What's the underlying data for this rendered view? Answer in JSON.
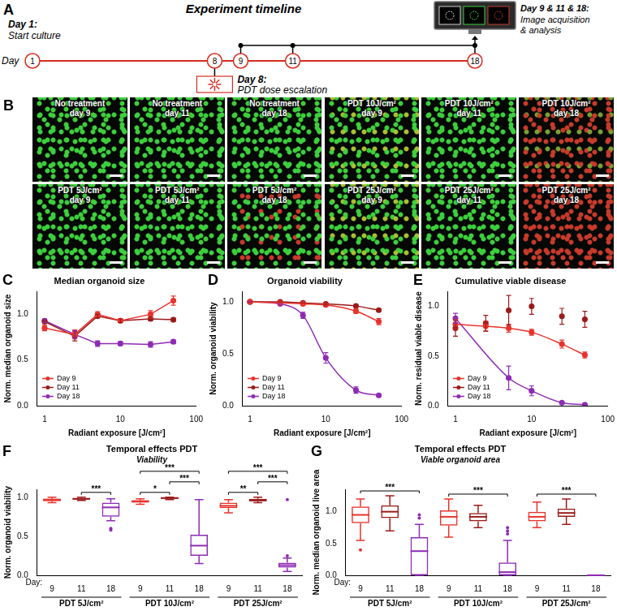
{
  "timeline": {
    "panel_label": "A",
    "title": "Experiment timeline",
    "axis_label": "Day",
    "days": [
      1,
      8,
      9,
      11,
      18
    ],
    "start": {
      "day": 1,
      "title": "Day 1:",
      "lines": [
        "Start culture"
      ]
    },
    "treatment": {
      "day": 8,
      "title": "Day 8:",
      "lines": [
        "PDT dose escalation"
      ]
    },
    "imaging": {
      "days": [
        9,
        11,
        18
      ],
      "title": "Day 9 & 11 & 18:",
      "lines": [
        "Image acquisition",
        "& analysis"
      ]
    }
  },
  "images": {
    "panel_label": "B",
    "tiles": [
      {
        "title": "No treatment",
        "day": "day 9",
        "colors": [
          "#3ccf3c"
        ]
      },
      {
        "title": "No treatment",
        "day": "day 11",
        "colors": [
          "#3ccf3c"
        ]
      },
      {
        "title": "No treatment",
        "day": "day 18",
        "colors": [
          "#3ccf3c"
        ]
      },
      {
        "title": "PDT 10J/cm²",
        "day": "day 9",
        "colors": [
          "#3ccf3c",
          "#3ccf3c",
          "#a8c030"
        ]
      },
      {
        "title": "PDT 10J/cm²",
        "day": "day 11",
        "colors": [
          "#3ccf3c"
        ]
      },
      {
        "title": "PDT 10J/cm²",
        "day": "day 18",
        "colors": [
          "#c83a2a",
          "#c83a2a",
          "#7aa030"
        ]
      },
      {
        "title": "PDT 5J/cm²",
        "day": "day 9",
        "colors": [
          "#3ccf3c"
        ]
      },
      {
        "title": "PDT 5J/cm²",
        "day": "day 11",
        "colors": [
          "#3ccf3c"
        ]
      },
      {
        "title": "PDT 5J/cm²",
        "day": "day 18",
        "colors": [
          "#3ccf3c",
          "#c83a2a"
        ]
      },
      {
        "title": "PDT 25J/cm²",
        "day": "day 9",
        "colors": [
          "#3ccf3c",
          "#3ccf3c",
          "#a8c030"
        ]
      },
      {
        "title": "PDT 25J/cm²",
        "day": "day 11",
        "colors": [
          "#3ccf3c"
        ]
      },
      {
        "title": "PDT 25J/cm²",
        "day": "day 18",
        "colors": [
          "#c83a2a"
        ]
      }
    ]
  },
  "chart_data": [
    {
      "panel_label": "C",
      "type": "line",
      "title": "Median organoid size",
      "x_label": "Radiant exposure [J/cm²]",
      "y_label": "Norm. median organoid size",
      "log": "x",
      "grid": false,
      "legend": "bottom left",
      "x": [
        1,
        2.5,
        5,
        10,
        25,
        50
      ],
      "xlim": [
        0.8,
        100
      ],
      "xticks": [
        1,
        10,
        100
      ],
      "ylim": [
        0,
        1.25
      ],
      "yticks": [
        {
          "value": 0,
          "label": "0.0"
        },
        {
          "value": 0.5,
          "label": "0.5"
        },
        {
          "value": 1,
          "label": "1.0"
        }
      ],
      "series": [
        {
          "name": "Day 9",
          "color": "#e8332c",
          "marker": "circle",
          "line_style": "solid",
          "values": [
            0.85,
            0.78,
            1.0,
            0.93,
            1.0,
            1.15
          ],
          "errors": [
            0.03,
            0.05,
            0.03,
            0.02,
            0.04,
            0.05
          ]
        },
        {
          "name": "Day 11",
          "color": "#9b1b1b",
          "marker": "circle",
          "line_style": "solid",
          "values": [
            0.92,
            0.76,
            0.98,
            0.93,
            0.95,
            0.94
          ],
          "errors": [
            0.02,
            0.05,
            0.02,
            0.02,
            0.02,
            0.02
          ]
        },
        {
          "name": "Day 18",
          "color": "#8e2bb5",
          "marker": "circle",
          "line_style": "solid",
          "values": [
            0.93,
            0.78,
            0.68,
            0.68,
            0.67,
            0.7
          ],
          "errors": [
            0.02,
            0.04,
            0.03,
            0.02,
            0.03,
            0.02
          ]
        }
      ]
    },
    {
      "panel_label": "D",
      "type": "line",
      "title": "Organoid viability",
      "x_label": "Radiant exposure [J/cm²]",
      "y_label": "Norm. organoid viability",
      "log": "x",
      "grid": false,
      "legend": "bottom left",
      "x": [
        1,
        2.5,
        5,
        10,
        25,
        50
      ],
      "xlim": [
        0.8,
        100
      ],
      "xticks": [
        1,
        10,
        100
      ],
      "ylim": [
        0,
        1.1
      ],
      "yticks": [
        {
          "value": 0,
          "label": "0.0"
        },
        {
          "value": 0.5,
          "label": "0.5"
        },
        {
          "value": 1,
          "label": "1.0"
        }
      ],
      "series": [
        {
          "name": "Day 9",
          "color": "#e8332c",
          "marker": "circle",
          "line_style": "curve",
          "values": [
            1.0,
            0.99,
            0.98,
            0.97,
            0.91,
            0.81
          ],
          "errors": [
            0,
            0,
            0.01,
            0.01,
            0.02,
            0.03
          ]
        },
        {
          "name": "Day 11",
          "color": "#9b1b1b",
          "marker": "circle",
          "line_style": "curve",
          "values": [
            1.0,
            1.0,
            0.99,
            0.98,
            0.96,
            0.92
          ],
          "errors": [
            0,
            0,
            0,
            0.01,
            0.01,
            0.01
          ]
        },
        {
          "name": "Day 18",
          "color": "#8e2bb5",
          "marker": "circle",
          "line_style": "curve",
          "values": [
            1.0,
            0.98,
            0.87,
            0.46,
            0.15,
            0.1
          ],
          "errors": [
            0,
            0,
            0.03,
            0.05,
            0.03,
            0.01
          ]
        }
      ]
    },
    {
      "panel_label": "E",
      "type": "line",
      "title": "Cumulative viable disease",
      "x_label": "Radiant exposure [J/cm²]",
      "y_label": "Norm. residual viable disease",
      "log": "x",
      "grid": false,
      "legend": "bottom left",
      "x": [
        1,
        2.5,
        5,
        10,
        25,
        50
      ],
      "xlim": [
        0.8,
        100
      ],
      "xticks": [
        1,
        10,
        100
      ],
      "ylim": [
        0,
        1.15
      ],
      "yticks": [
        {
          "value": 0,
          "label": "0.0"
        },
        {
          "value": 0.5,
          "label": "0.5"
        },
        {
          "value": 1,
          "label": "1.0"
        }
      ],
      "series": [
        {
          "name": "Day 9",
          "color": "#e8332c",
          "marker": "circle",
          "line_style": "curve",
          "values": [
            0.82,
            0.8,
            0.78,
            0.74,
            0.62,
            0.51
          ],
          "errors": [
            0.05,
            0.05,
            0.04,
            0.03,
            0.04,
            0.03
          ]
        },
        {
          "name": "Day 11",
          "color": "#9b1b1b",
          "marker": "circle",
          "line_style": "none",
          "values": [
            0.78,
            0.83,
            0.96,
            1.0,
            0.9,
            0.87
          ],
          "errors": [
            0.08,
            0.08,
            0.15,
            0.08,
            0.08,
            0.08
          ]
        },
        {
          "name": "Day 18",
          "color": "#8e2bb5",
          "marker": "circle",
          "line_style": "curve",
          "values": [
            0.88,
            null,
            0.28,
            0.15,
            0.03,
            0.01
          ],
          "errors": [
            0.05,
            null,
            0.12,
            0.05,
            0.01,
            0.01
          ]
        }
      ]
    },
    {
      "panel_label": "F",
      "type": "box",
      "title": "Temporal effects PDT",
      "subtitle": "Viability",
      "x_label": "Day:",
      "y_label": "Norm. organoid viability",
      "grid": false,
      "categories": [
        "9",
        "11",
        "18",
        "9",
        "11",
        "18",
        "9",
        "11",
        "18"
      ],
      "groups": [
        {
          "label": "PDT 5J/cm²",
          "from": 0,
          "to": 2
        },
        {
          "label": "PDT 10J/cm²",
          "from": 3,
          "to": 5
        },
        {
          "label": "PDT 25J/cm²",
          "from": 6,
          "to": 8
        }
      ],
      "colors": [
        "#e8332c",
        "#9b1b1b",
        "#8e2bb5",
        "#e8332c",
        "#9b1b1b",
        "#8e2bb5",
        "#e8332c",
        "#9b1b1b",
        "#8e2bb5"
      ],
      "ylim": [
        0,
        1.1
      ],
      "yticks": [
        {
          "value": 0,
          "label": "0.0"
        },
        {
          "value": 0.5,
          "label": "0.5"
        },
        {
          "value": 1,
          "label": "1.0"
        }
      ],
      "values": [
        {
          "min": 0.93,
          "q1": 0.95,
          "median": 0.97,
          "q3": 0.98,
          "max": 1.0,
          "outliers": []
        },
        {
          "min": 0.96,
          "q1": 0.97,
          "median": 0.98,
          "q3": 0.99,
          "max": 1.0,
          "outliers": []
        },
        {
          "min": 0.7,
          "q1": 0.75,
          "median": 0.87,
          "q3": 0.93,
          "max": 0.98,
          "outliers": [
            0.6,
            0.58
          ]
        },
        {
          "min": 0.91,
          "q1": 0.93,
          "median": 0.95,
          "q3": 0.96,
          "max": 0.98,
          "outliers": []
        },
        {
          "min": 0.97,
          "q1": 0.98,
          "median": 0.99,
          "q3": 1.0,
          "max": 1.0,
          "outliers": []
        },
        {
          "min": 0.15,
          "q1": 0.25,
          "median": 0.38,
          "q3": 0.52,
          "max": 0.97,
          "outliers": []
        },
        {
          "min": 0.8,
          "q1": 0.86,
          "median": 0.89,
          "q3": 0.93,
          "max": 0.97,
          "outliers": []
        },
        {
          "min": 0.93,
          "q1": 0.95,
          "median": 0.96,
          "q3": 0.98,
          "max": 1.0,
          "outliers": []
        },
        {
          "min": 0.05,
          "q1": 0.1,
          "median": 0.13,
          "q3": 0.16,
          "max": 0.22,
          "outliers": [
            0.25,
            0.97
          ]
        }
      ],
      "annotations": [
        {
          "from": 1,
          "to": 2,
          "text": "***"
        },
        {
          "from": 3,
          "to": 4,
          "text": "*"
        },
        {
          "from": 4,
          "to": 5,
          "text": "***"
        },
        {
          "from": 3,
          "to": 5,
          "text": "***"
        },
        {
          "from": 6,
          "to": 7,
          "text": "**"
        },
        {
          "from": 7,
          "to": 8,
          "text": "***"
        },
        {
          "from": 6,
          "to": 8,
          "text": "***"
        }
      ]
    },
    {
      "panel_label": "G",
      "type": "box",
      "title": "Temporal effects PDT",
      "subtitle": "Viable organoid area",
      "x_label": "Day:",
      "y_label": "Norm. median organoid live area",
      "grid": false,
      "categories": [
        "9",
        "11",
        "18",
        "9",
        "11",
        "18",
        "9",
        "11",
        "18"
      ],
      "groups": [
        {
          "label": "PDT 5J/cm²",
          "from": 0,
          "to": 2
        },
        {
          "label": "PDT 10J/cm²",
          "from": 3,
          "to": 5
        },
        {
          "label": "PDT 25J/cm²",
          "from": 6,
          "to": 8
        }
      ],
      "colors": [
        "#e8332c",
        "#9b1b1b",
        "#8e2bb5",
        "#e8332c",
        "#9b1b1b",
        "#8e2bb5",
        "#e8332c",
        "#9b1b1b",
        "#8e2bb5"
      ],
      "ylim": [
        0,
        1.35
      ],
      "yticks": [
        {
          "value": 0,
          "label": "0.0"
        },
        {
          "value": 0.5,
          "label": "0.5"
        },
        {
          "value": 1,
          "label": "1.0"
        }
      ],
      "values": [
        {
          "min": 0.55,
          "q1": 0.82,
          "median": 0.95,
          "q3": 1.08,
          "max": 1.2,
          "outliers": [
            0.4
          ]
        },
        {
          "min": 0.7,
          "q1": 0.9,
          "median": 1.0,
          "q3": 1.1,
          "max": 1.25,
          "outliers": []
        },
        {
          "min": 0,
          "q1": 0,
          "median": 0.38,
          "q3": 0.6,
          "max": 0.8,
          "outliers": [
            0.95,
            0.9
          ]
        },
        {
          "min": 0.6,
          "q1": 0.78,
          "median": 0.92,
          "q3": 1.02,
          "max": 1.2,
          "outliers": []
        },
        {
          "min": 0.75,
          "q1": 0.85,
          "median": 0.92,
          "q3": 0.98,
          "max": 1.1,
          "outliers": []
        },
        {
          "min": 0,
          "q1": 0,
          "median": 0.05,
          "q3": 0.2,
          "max": 0.55,
          "outliers": [
            0.75,
            0.7,
            0.65
          ]
        },
        {
          "min": 0.75,
          "q1": 0.85,
          "median": 0.92,
          "q3": 1.0,
          "max": 1.15,
          "outliers": []
        },
        {
          "min": 0.8,
          "q1": 0.92,
          "median": 0.98,
          "q3": 1.05,
          "max": 1.2,
          "outliers": []
        },
        {
          "min": 0,
          "q1": 0,
          "median": 0,
          "q3": 0,
          "max": 0,
          "outliers": []
        }
      ],
      "annotations": [
        {
          "from": 0,
          "to": 2,
          "text": "***"
        },
        {
          "from": 3,
          "to": 5,
          "text": "***"
        },
        {
          "from": 6,
          "to": 8,
          "text": "***"
        }
      ]
    }
  ]
}
